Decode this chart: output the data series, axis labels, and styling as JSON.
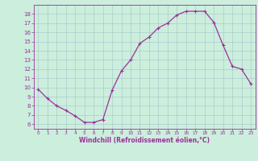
{
  "x": [
    0,
    1,
    2,
    3,
    4,
    5,
    6,
    7,
    8,
    9,
    10,
    11,
    12,
    13,
    14,
    15,
    16,
    17,
    18,
    19,
    20,
    21,
    22,
    23
  ],
  "y": [
    9.8,
    8.8,
    8.0,
    7.5,
    6.9,
    6.2,
    6.2,
    6.5,
    9.7,
    11.8,
    13.0,
    14.8,
    15.5,
    16.5,
    17.0,
    17.9,
    18.3,
    18.3,
    18.3,
    17.1,
    14.6,
    12.3,
    12.0,
    10.4
  ],
  "line_color": "#993399",
  "marker": "+",
  "marker_size": 3,
  "marker_linewidth": 0.8,
  "bg_color": "#cceedd",
  "grid_color": "#aacccc",
  "xlabel": "Windchill (Refroidissement éolien,°C)",
  "xlabel_color": "#993399",
  "tick_color": "#993399",
  "spine_color": "#993399",
  "xlim": [
    -0.5,
    23.5
  ],
  "ylim": [
    5.5,
    19.0
  ],
  "yticks": [
    6,
    7,
    8,
    9,
    10,
    11,
    12,
    13,
    14,
    15,
    16,
    17,
    18
  ],
  "xticks": [
    0,
    1,
    2,
    3,
    4,
    5,
    6,
    7,
    8,
    9,
    10,
    11,
    12,
    13,
    14,
    15,
    16,
    17,
    18,
    19,
    20,
    21,
    22,
    23
  ],
  "xlabel_fontsize": 5.5,
  "xtick_fontsize": 4.2,
  "ytick_fontsize": 5.0,
  "linewidth": 0.9
}
